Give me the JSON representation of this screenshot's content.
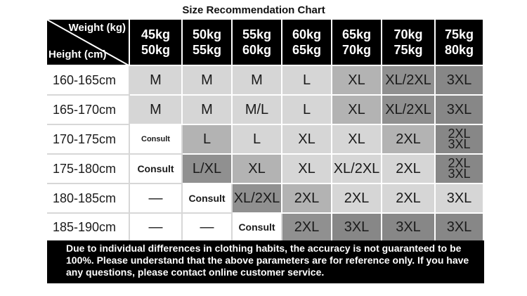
{
  "title": "Size Recommendation Chart",
  "corner": {
    "weight_label": "Weight (kg)",
    "height_label": "Height (cm)"
  },
  "weight_columns": [
    {
      "top": "45kg",
      "bottom": "50kg"
    },
    {
      "top": "50kg",
      "bottom": "55kg"
    },
    {
      "top": "55kg",
      "bottom": "60kg"
    },
    {
      "top": "60kg",
      "bottom": "65kg"
    },
    {
      "top": "65kg",
      "bottom": "70kg"
    },
    {
      "top": "70kg",
      "bottom": "75kg"
    },
    {
      "top": "75kg",
      "bottom": "80kg"
    }
  ],
  "rows": [
    {
      "height": "160-165cm",
      "cells": [
        "M",
        "M",
        "M",
        "L",
        "XL",
        "XL/2XL",
        "3XL"
      ]
    },
    {
      "height": "165-170cm",
      "cells": [
        "M",
        "M",
        "M/L",
        "L",
        "XL",
        "XL/2XL",
        "3XL"
      ]
    },
    {
      "height": "170-175cm",
      "cells": [
        "Consult",
        "L",
        "L",
        "XL",
        "XL",
        "2XL",
        "2XL 3XL"
      ]
    },
    {
      "height": "175-180cm",
      "cells": [
        "Consult",
        "L/XL",
        "XL",
        "XL",
        "XL/2XL",
        "2XL",
        "2XL 3XL"
      ]
    },
    {
      "height": "180-185cm",
      "cells": [
        "—",
        "Consult",
        "XL/2XL",
        "2XL",
        "2XL",
        "2XL",
        "3XL"
      ]
    },
    {
      "height": "185-190cm",
      "cells": [
        "—",
        "—",
        "Consult",
        "2XL",
        "3XL",
        "3XL",
        "3XL"
      ]
    }
  ],
  "stacked_cell": {
    "top": "2XL",
    "bottom": "3XL"
  },
  "note": "Due to individual differences in clothing habits, the accuracy is not guaranteed to be 100%. Please understand that the above parameters are for reference only. If you have any questions, please contact online customer service.",
  "colors": {
    "header_bg": "#000000",
    "light": "#d6d6d6",
    "mid": "#b3b3b3",
    "dark": "#909090",
    "darker": "#878787"
  }
}
